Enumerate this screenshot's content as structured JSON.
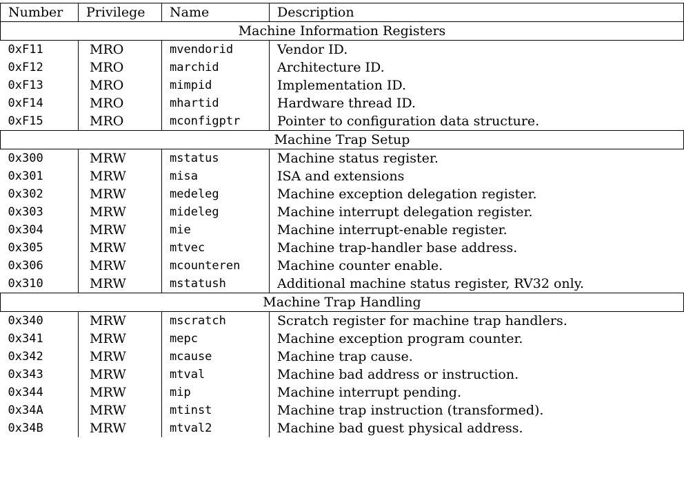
{
  "headers": {
    "number": "Number",
    "privilege": "Privilege",
    "name": "Name",
    "description": "Description"
  },
  "groups": [
    {
      "title": "Machine Information Registers",
      "rows": [
        {
          "number": "0xF11",
          "privilege": "MRO",
          "name": "mvendorid",
          "description": "Vendor ID."
        },
        {
          "number": "0xF12",
          "privilege": "MRO",
          "name": "marchid",
          "description": "Architecture ID."
        },
        {
          "number": "0xF13",
          "privilege": "MRO",
          "name": "mimpid",
          "description": "Implementation ID."
        },
        {
          "number": "0xF14",
          "privilege": "MRO",
          "name": "mhartid",
          "description": "Hardware thread ID."
        },
        {
          "number": "0xF15",
          "privilege": "MRO",
          "name": "mconfigptr",
          "description": "Pointer to configuration data structure."
        }
      ]
    },
    {
      "title": "Machine Trap Setup",
      "rows": [
        {
          "number": "0x300",
          "privilege": "MRW",
          "name": "mstatus",
          "description": "Machine status register."
        },
        {
          "number": "0x301",
          "privilege": "MRW",
          "name": "misa",
          "description": "ISA and extensions"
        },
        {
          "number": "0x302",
          "privilege": "MRW",
          "name": "medeleg",
          "description": "Machine exception delegation register."
        },
        {
          "number": "0x303",
          "privilege": "MRW",
          "name": "mideleg",
          "description": "Machine interrupt delegation register."
        },
        {
          "number": "0x304",
          "privilege": "MRW",
          "name": "mie",
          "description": "Machine interrupt-enable register."
        },
        {
          "number": "0x305",
          "privilege": "MRW",
          "name": "mtvec",
          "description": "Machine trap-handler base address."
        },
        {
          "number": "0x306",
          "privilege": "MRW",
          "name": "mcounteren",
          "description": "Machine counter enable."
        },
        {
          "number": "0x310",
          "privilege": "MRW",
          "name": "mstatush",
          "description": "Additional machine status register, RV32 only."
        }
      ]
    },
    {
      "title": "Machine Trap Handling",
      "rows": [
        {
          "number": "0x340",
          "privilege": "MRW",
          "name": "mscratch",
          "description": "Scratch register for machine trap handlers."
        },
        {
          "number": "0x341",
          "privilege": "MRW",
          "name": "mepc",
          "description": "Machine exception program counter."
        },
        {
          "number": "0x342",
          "privilege": "MRW",
          "name": "mcause",
          "description": "Machine trap cause."
        },
        {
          "number": "0x343",
          "privilege": "MRW",
          "name": "mtval",
          "description": "Machine bad address or instruction."
        },
        {
          "number": "0x344",
          "privilege": "MRW",
          "name": "mip",
          "description": "Machine interrupt pending."
        },
        {
          "number": "0x34A",
          "privilege": "MRW",
          "name": "mtinst",
          "description": "Machine trap instruction (transformed)."
        },
        {
          "number": "0x34B",
          "privilege": "MRW",
          "name": "mtval2",
          "description": "Machine bad guest physical address."
        }
      ]
    }
  ]
}
